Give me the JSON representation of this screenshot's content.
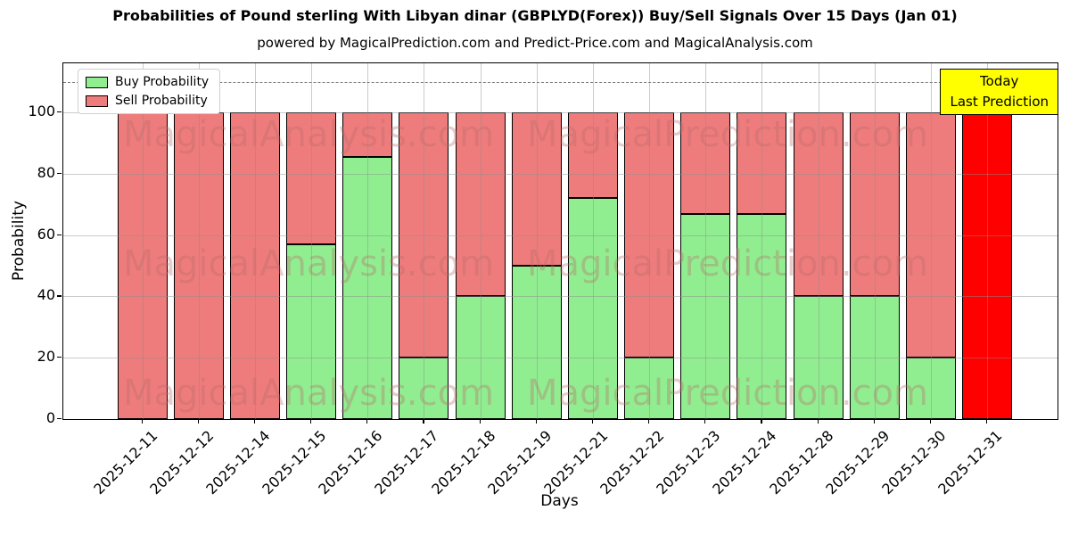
{
  "title": "Probabilities of Pound sterling With Libyan dinar (GBPLYD(Forex)) Buy/Sell Signals Over 15 Days (Jan 01)",
  "subtitle": "powered by MagicalPrediction.com and Predict-Price.com and MagicalAnalysis.com",
  "legend": {
    "buy_label": "Buy Probability",
    "sell_label": "Sell Probability"
  },
  "today_annotation": {
    "line1": "Today",
    "line2": "Last Prediction"
  },
  "watermarks": [
    "MagicalAnalysis.com",
    "MagicalPrediction.com"
  ],
  "colors": {
    "buy": "#90ee90",
    "sell": "#ee7c7c",
    "today_bar": "#ff0000",
    "annotation_bg": "#ffff00",
    "grid": "#8c8c8c",
    "bar_edge": "#000000"
  },
  "chart_data": {
    "type": "bar",
    "stacked": true,
    "title": "Probabilities of Pound sterling With Libyan dinar (GBPLYD(Forex)) Buy/Sell Signals Over 15 Days (Jan 01)",
    "xlabel": "Days",
    "ylabel": "Probability",
    "categories": [
      "2025-12-11",
      "2025-12-12",
      "2025-12-14",
      "2025-12-15",
      "2025-12-16",
      "2025-12-17",
      "2025-12-18",
      "2025-12-19",
      "2025-12-21",
      "2025-12-22",
      "2025-12-23",
      "2025-12-24",
      "2025-12-28",
      "2025-12-29",
      "2025-12-30",
      "2025-12-31"
    ],
    "series": [
      {
        "name": "Buy Probability",
        "color": "#90ee90",
        "values": [
          0,
          0,
          0,
          57,
          85.5,
          20,
          40,
          50,
          72,
          20,
          67,
          67,
          40,
          40,
          20,
          0
        ]
      },
      {
        "name": "Sell Probability",
        "color": "#ee7c7c",
        "values": [
          100,
          100,
          100,
          43,
          14.5,
          80,
          60,
          50,
          28,
          80,
          33,
          33,
          60,
          60,
          80,
          100
        ]
      }
    ],
    "today_bar": {
      "category": "2025-12-31",
      "index": 15,
      "color": "#ff0000"
    },
    "yticks": [
      0,
      20,
      40,
      60,
      80,
      100
    ],
    "ylim": [
      0,
      116
    ],
    "dashed_line_y": 110,
    "grid": true,
    "legend_position": "upper left"
  }
}
